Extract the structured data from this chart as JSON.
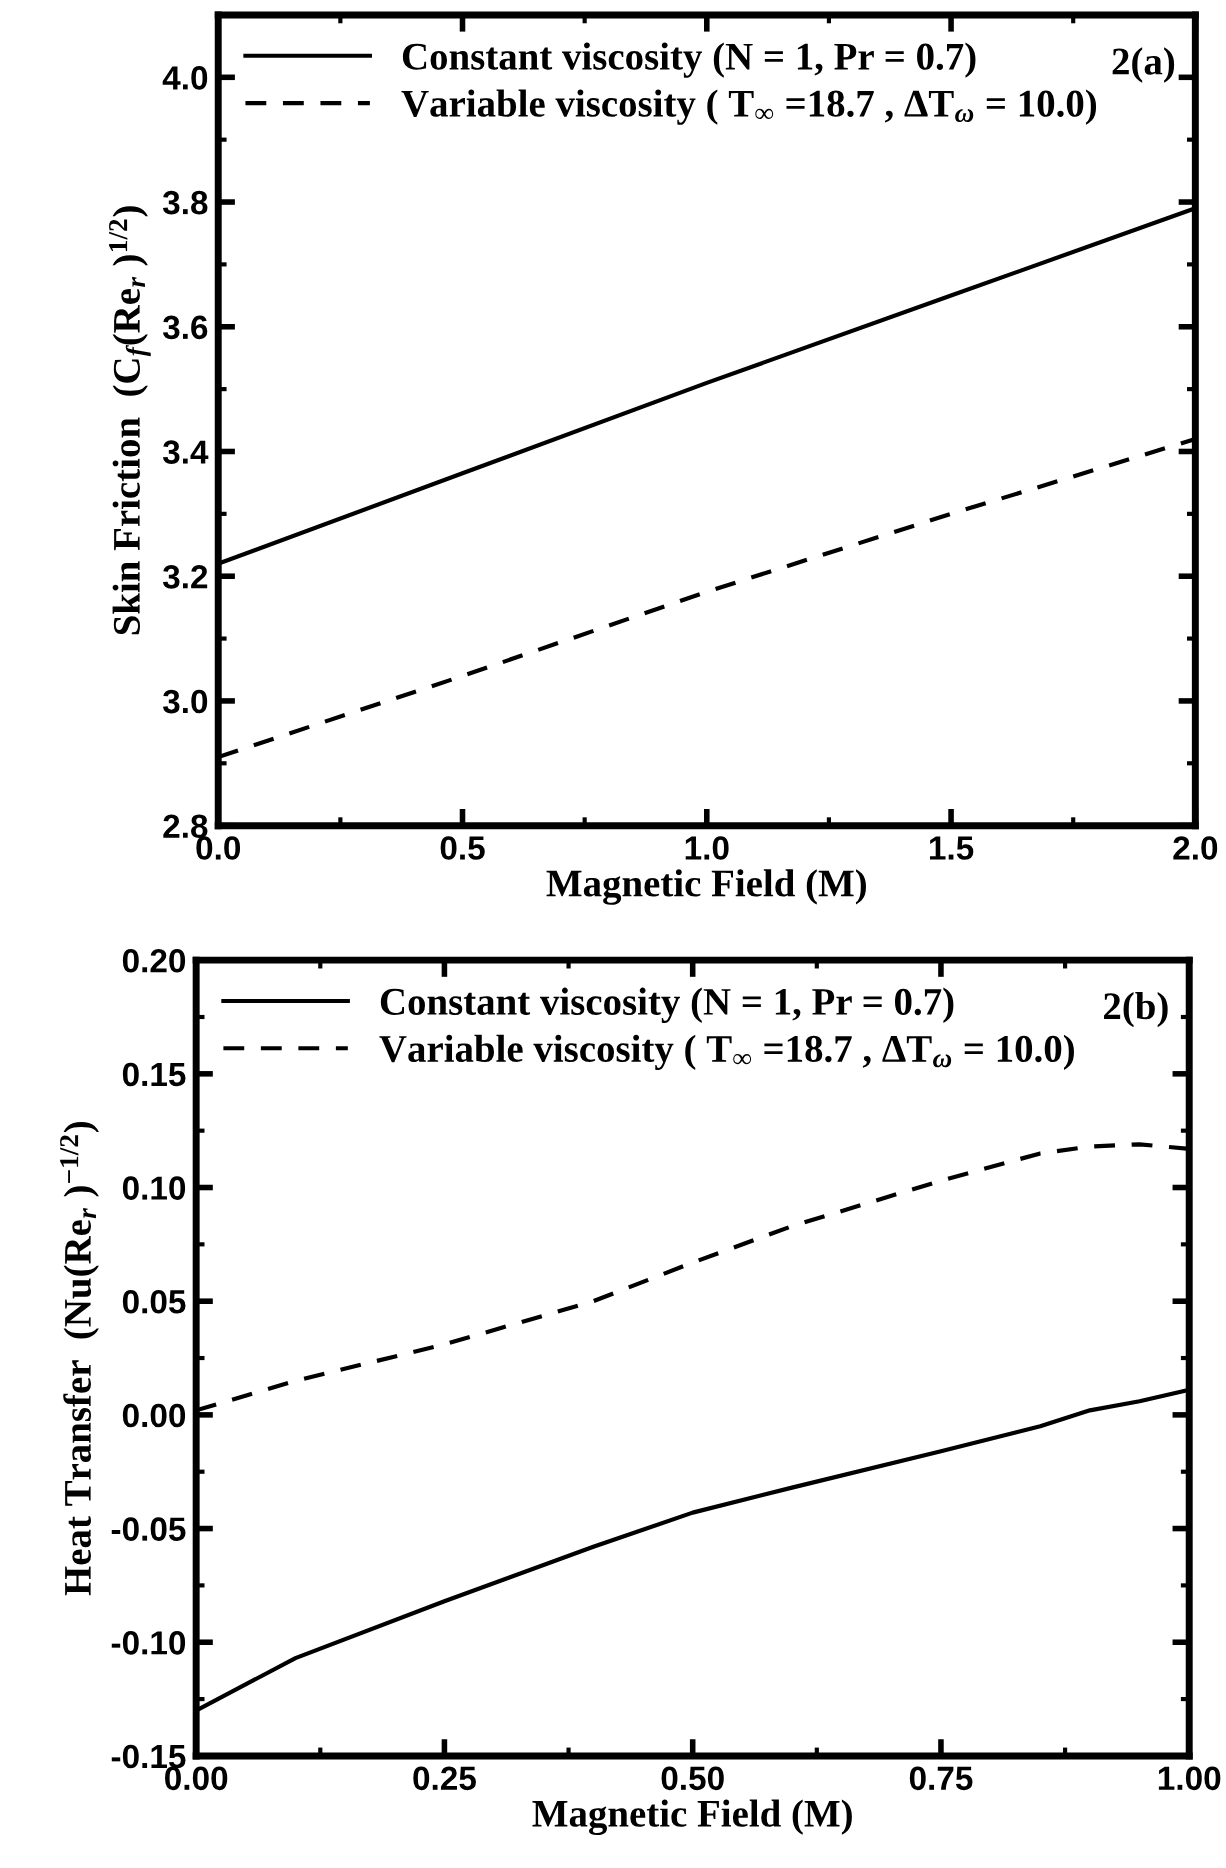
{
  "chart_data": [
    {
      "type": "line",
      "xlabel": "Magnetic Field (M)",
      "ylabel": "Skin Friction  (C$_{f}$(Re$_{r}$ )$^{1/2}$)",
      "annotations": [
        "2(a)"
      ],
      "xlim": [
        0,
        2
      ],
      "ylim": [
        2.8,
        4.1
      ],
      "xticks": [
        {
          "value": 0,
          "label": "0.0"
        },
        0.5,
        {
          "value": 1,
          "label": "1.0"
        },
        1.5,
        {
          "value": 2,
          "label": "2.0"
        }
      ],
      "yticks": [
        2.8,
        {
          "value": 3,
          "label": "3.0"
        },
        3.2,
        3.4,
        3.6,
        3.8,
        {
          "value": 4,
          "label": "4.0"
        }
      ],
      "legend": "top left",
      "grid": false,
      "x": [
        0,
        0.5,
        1.0,
        1.5,
        2.0
      ],
      "series": [
        {
          "name": "Constant viscosity (N = 1, Pr = 0.7)",
          "color": "#000000",
          "line_style": "solid",
          "values": [
            3.22,
            3.365,
            3.51,
            3.65,
            3.79
          ]
        },
        {
          "name": "Variable viscosity ( T$_{∞}$ =18.7 , ΔT$_{ω}$ = 10.0)",
          "color": "#000000",
          "line_style": "dashed",
          "values": [
            2.91,
            3.04,
            3.175,
            3.3,
            3.42
          ]
        }
      ]
    },
    {
      "type": "line",
      "xlabel": "Magnetic Field (M)",
      "ylabel": "Heat Transfer  (Nu(Re$_{r}$ )$^{−1/2}$)",
      "annotations": [
        "2(b)"
      ],
      "xlim": [
        0,
        1
      ],
      "ylim": [
        -0.15,
        0.2
      ],
      "xticks": [
        {
          "value": 0,
          "label": "0.00"
        },
        0.25,
        {
          "value": 0.5,
          "label": "0.50"
        },
        0.75,
        {
          "value": 1,
          "label": "1.00"
        }
      ],
      "yticks": [
        -0.15,
        {
          "value": -0.1,
          "label": "-0.10"
        },
        -0.05,
        {
          "value": 0,
          "label": "0.00"
        },
        0.05,
        {
          "value": 0.1,
          "label": "0.10"
        },
        0.15,
        {
          "value": 0.2,
          "label": "0.20"
        }
      ],
      "legend": "top left",
      "grid": false,
      "x": [
        0,
        0.1,
        0.25,
        0.4,
        0.5,
        0.6,
        0.75,
        0.85,
        0.9,
        0.95,
        1.0
      ],
      "series": [
        {
          "name": "Constant viscosity (N = 1, Pr = 0.7)",
          "color": "#000000",
          "line_style": "solid",
          "values": [
            -0.13,
            -0.107,
            -0.082,
            -0.058,
            -0.043,
            -0.032,
            -0.016,
            -0.005,
            0.002,
            0.006,
            0.011
          ]
        },
        {
          "name": "Variable viscosity ( T$_{∞}$ =18.7 , ΔT$_{ω}$ = 10.0)",
          "color": "#000000",
          "line_style": "dashed",
          "values": [
            0.002,
            0.015,
            0.031,
            0.05,
            0.067,
            0.083,
            0.103,
            0.115,
            0.118,
            0.119,
            0.117
          ]
        }
      ]
    }
  ]
}
